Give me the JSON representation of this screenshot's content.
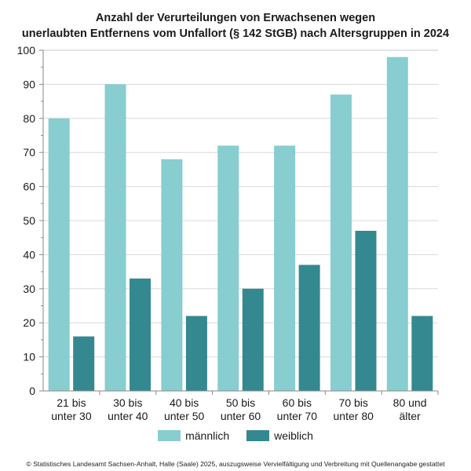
{
  "chart_data": {
    "type": "bar",
    "title": "Anzahl der Verurteilungen von Erwachsenen wegen unerlaubten Entfernens vom Unfallort (§ 142 StGB) nach Altersgruppen in 2024",
    "title_lines": [
      "Anzahl der Verurteilungen von Erwachsenen wegen",
      "unerlaubten Entfernens vom Unfallort (§ 142 StGB) nach Altersgruppen in 2024"
    ],
    "categories": [
      [
        "21 bis",
        "unter 30"
      ],
      [
        "30 bis",
        "unter 40"
      ],
      [
        "40 bis",
        "unter 50"
      ],
      [
        "50 bis",
        "unter 60"
      ],
      [
        "60 bis",
        "unter 70"
      ],
      [
        "70 bis",
        "unter 80"
      ],
      [
        "80 und",
        "älter"
      ]
    ],
    "series": [
      {
        "name": "männlich",
        "color": "#88cdd0",
        "values": [
          80,
          90,
          68,
          72,
          72,
          87,
          98
        ]
      },
      {
        "name": "weiblich",
        "color": "#348890",
        "values": [
          16,
          33,
          22,
          30,
          37,
          47,
          22
        ]
      }
    ],
    "xlabel": "",
    "ylabel": "",
    "ylim": [
      0,
      100
    ],
    "yticks": [
      0,
      10,
      20,
      30,
      40,
      50,
      60,
      70,
      80,
      90,
      100
    ],
    "minor_tick_step": 5,
    "grid": true,
    "legend_position": "bottom-center"
  },
  "footer": "© Statistisches Landesamt Sachsen-Anhalt, Halle (Saale) 2025, auszugsweise Vervielfältigung und Verbreitung mit Quellenangabe gestattet"
}
